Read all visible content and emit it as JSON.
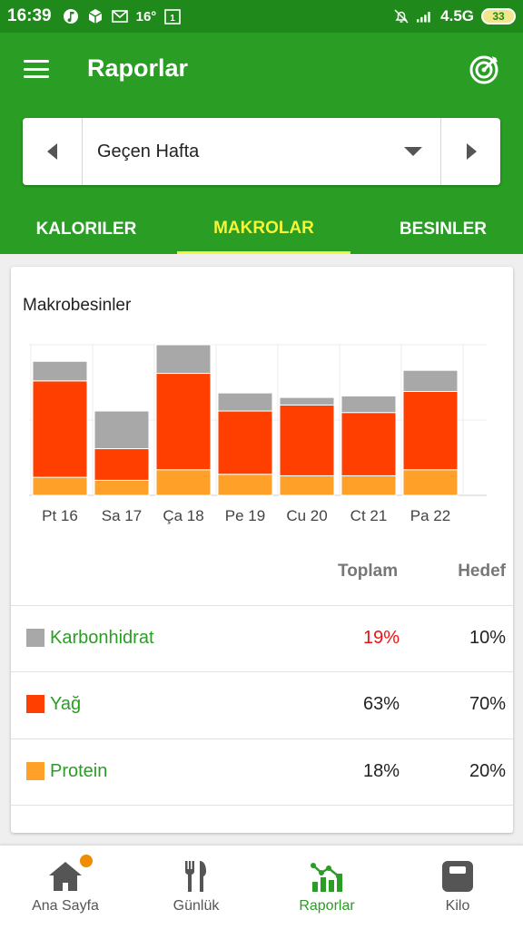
{
  "status_bar": {
    "time": "16:39",
    "temperature": "16°",
    "network": "4.5G",
    "battery": "33"
  },
  "app_bar": {
    "title": "Raporlar",
    "menu_icon": "hamburger-menu-icon",
    "goal_icon": "target-icon"
  },
  "week_selector": {
    "selected": "Geçen Hafta"
  },
  "tabs": [
    {
      "label": "KALORILER",
      "active": false
    },
    {
      "label": "MAKROLAR",
      "active": true
    },
    {
      "label": "BESINLER",
      "active": false
    }
  ],
  "card": {
    "title": "Makrobesinler",
    "header_total": "Toplam",
    "header_goal": "Hedef"
  },
  "macros": [
    {
      "name": "Karbonhidrat",
      "total": "19%",
      "goal": "10%",
      "color": "#a8a8a8",
      "over_goal": true
    },
    {
      "name": "Yağ",
      "total": "63%",
      "goal": "70%",
      "color": "#ff3f00",
      "over_goal": false
    },
    {
      "name": "Protein",
      "total": "18%",
      "goal": "20%",
      "color": "#ffa028",
      "over_goal": false
    }
  ],
  "chart_data": {
    "type": "bar",
    "stacked": true,
    "title": "Makrobesinler",
    "categories": [
      "Pt 16",
      "Sa 17",
      "Ça 18",
      "Pe 19",
      "Cu 20",
      "Ct 21",
      "Pa 22"
    ],
    "series": [
      {
        "name": "Protein",
        "color": "#ffa028",
        "values": [
          12,
          10,
          17,
          14,
          13,
          13,
          17
        ]
      },
      {
        "name": "Yağ",
        "color": "#ff3f00",
        "values": [
          64,
          21,
          64,
          42,
          47,
          42,
          52
        ]
      },
      {
        "name": "Karbonhidrat",
        "color": "#a8a8a8",
        "values": [
          13,
          25,
          19,
          12,
          5,
          11,
          14
        ]
      }
    ],
    "ylim": [
      0,
      100
    ],
    "grid": true
  },
  "bottom_nav": [
    {
      "label": "Ana Sayfa",
      "icon": "home-icon",
      "active": false,
      "badge": true
    },
    {
      "label": "Günlük",
      "icon": "fork-knife-icon",
      "active": false,
      "badge": false
    },
    {
      "label": "Raporlar",
      "icon": "reports-chart-icon",
      "active": true,
      "badge": false
    },
    {
      "label": "Kilo",
      "icon": "scale-icon",
      "active": false,
      "badge": false
    }
  ]
}
